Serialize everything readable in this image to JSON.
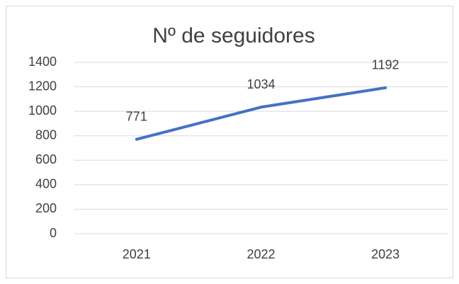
{
  "chart_data": {
    "type": "line",
    "title": "Nº de seguidores",
    "categories": [
      "2021",
      "2022",
      "2023"
    ],
    "series": [
      {
        "name": "Nº de seguidores",
        "color": "#4472c4",
        "values": [
          771,
          1034,
          1192
        ]
      }
    ],
    "ylim": [
      0,
      1400
    ],
    "yticks": [
      0,
      200,
      400,
      600,
      800,
      1000,
      1200,
      1400
    ],
    "grid": true
  }
}
